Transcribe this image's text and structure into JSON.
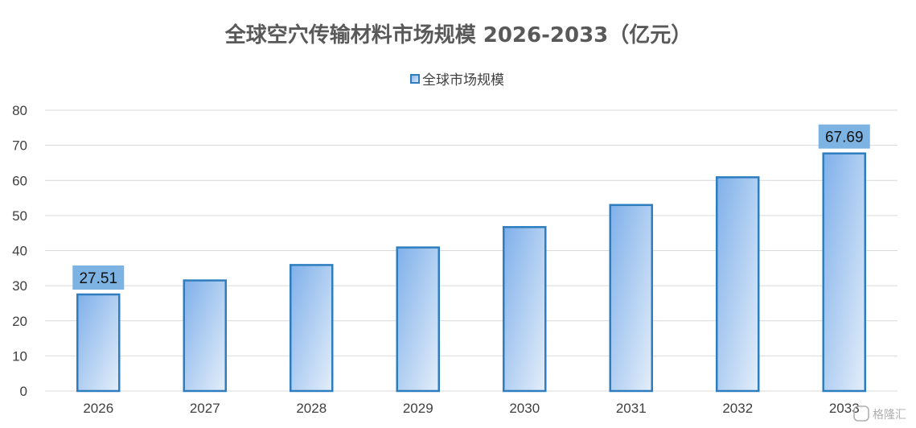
{
  "chart_data": {
    "type": "bar",
    "title": "全球空穴传输材料市场规模 2026-2033（亿元）",
    "legend": {
      "label": "全球市场规模",
      "position": "top"
    },
    "categories": [
      "2026",
      "2027",
      "2028",
      "2029",
      "2030",
      "2031",
      "2032",
      "2033"
    ],
    "series": [
      {
        "name": "全球市场规模",
        "values": [
          27.51,
          31.5,
          35.9,
          40.9,
          46.7,
          53.0,
          60.9,
          67.69
        ]
      }
    ],
    "data_labels": [
      {
        "index": 0,
        "text": "27.51"
      },
      {
        "index": 7,
        "text": "67.69"
      }
    ],
    "ylim": [
      0,
      80
    ],
    "yticks": [
      0,
      10,
      20,
      30,
      40,
      50,
      60,
      70,
      80
    ],
    "grid": true,
    "colors": {
      "bar_gradient_start": "#7fb0ea",
      "bar_gradient_end": "#e4eefa",
      "bar_border": "#2e7ebf",
      "label_bg": "#7db3e3",
      "grid": "#d9d9d9"
    }
  },
  "watermark": {
    "icon": "gelonghui-logo-icon",
    "text": "格隆汇"
  }
}
